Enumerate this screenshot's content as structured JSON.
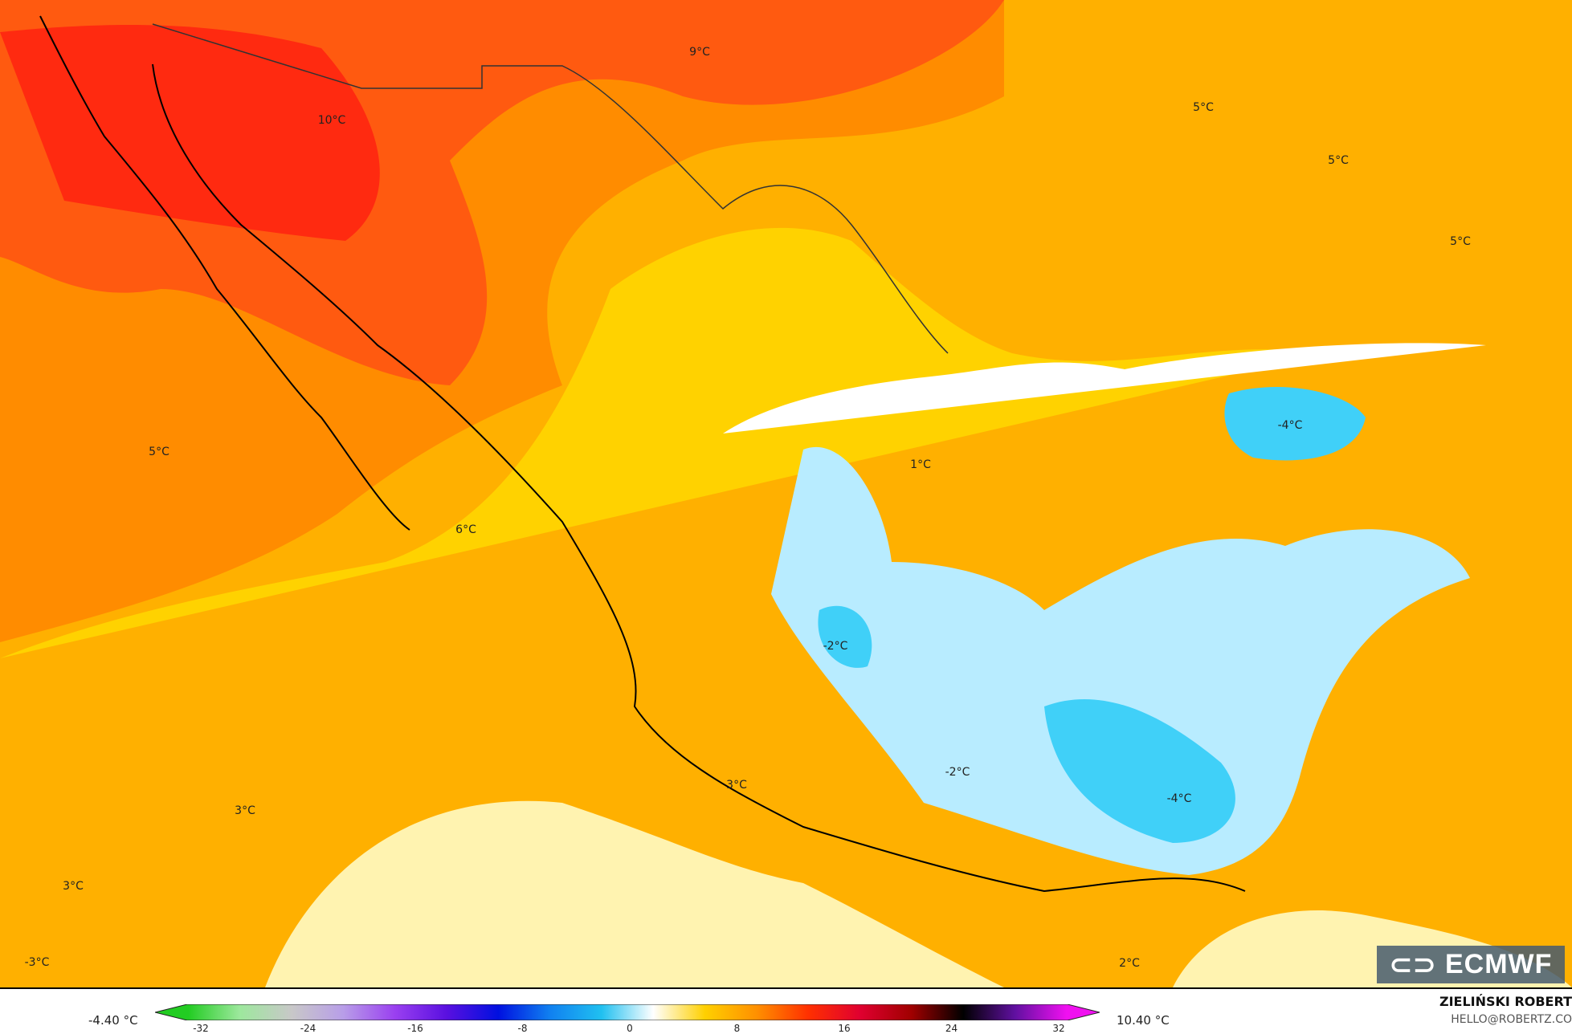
{
  "map": {
    "labels": [
      {
        "text": "9°C"
      },
      {
        "text": "10°C"
      },
      {
        "text": "5°C"
      },
      {
        "text": "5°C"
      },
      {
        "text": "5°C"
      },
      {
        "text": "-4°C"
      },
      {
        "text": "5°C"
      },
      {
        "text": "1°C"
      },
      {
        "text": "6°C"
      },
      {
        "text": "-2°C"
      },
      {
        "text": "-2°C"
      },
      {
        "text": "-4°C"
      },
      {
        "text": "3°C"
      },
      {
        "text": "3°C"
      },
      {
        "text": "3°C"
      },
      {
        "text": "-3°C"
      },
      {
        "text": "2°C"
      }
    ],
    "logo": "ECMWF"
  },
  "legend": {
    "min_label": "-4.40 °C",
    "max_label": "10.40 °C",
    "ticks": [
      "-32",
      "-24",
      "-16",
      "-8",
      "0",
      "8",
      "16",
      "24",
      "32"
    ],
    "colors": [
      "#22cc22",
      "#9de89d",
      "#c8c8c8",
      "#b89ee8",
      "#9a40f0",
      "#5a10e0",
      "#0010e0",
      "#1080f0",
      "#20c0f0",
      "#ffffff",
      "#ffd000",
      "#ff9000",
      "#ff3000",
      "#e00030",
      "#a00000",
      "#000000",
      "#6010a0",
      "#f010f0"
    ]
  },
  "credit": {
    "author": "ZIELIŃSKI ROBERT",
    "email": "HELLO@ROBERTZ.CO"
  }
}
